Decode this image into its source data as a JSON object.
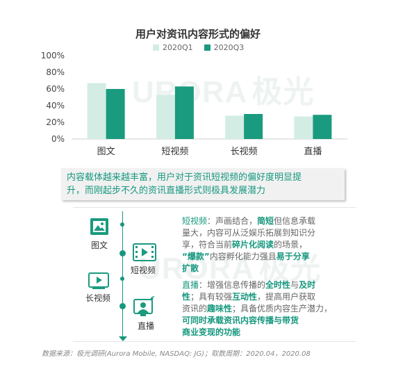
{
  "chart_data": {
    "type": "bar",
    "title": "用户对资讯内容形式的偏好",
    "categories": [
      "图文",
      "短视频",
      "长视频",
      "直播"
    ],
    "series": [
      {
        "name": "2020Q1",
        "values": [
          67,
          53,
          28,
          27
        ]
      },
      {
        "name": "2020Q3",
        "values": [
          60,
          63,
          30,
          29
        ]
      }
    ],
    "ylim": [
      0,
      100
    ],
    "yticks": [
      "0%",
      "20%",
      "40%",
      "60%",
      "80%",
      "100%"
    ],
    "grid": false,
    "legend_position": "top",
    "colors": {
      "2020Q1": "#d3ede4",
      "2020Q3": "#1a9a7e"
    }
  },
  "watermark": {
    "text": "URORA",
    "brand": "极光"
  },
  "summary": {
    "line1": "内容载体越来越丰富，用户对于资讯短视频的偏好度明显提",
    "line2": "升，而刚起步不久的资讯直播形式则极具发展潜力"
  },
  "icons": [
    {
      "name": "image-icon",
      "label": "图文"
    },
    {
      "name": "video-film-icon",
      "label": "短视频"
    },
    {
      "name": "play-icon",
      "label": "长视频"
    },
    {
      "name": "live-person-icon",
      "label": "直播"
    }
  ],
  "short_video": {
    "l1": [
      "短视频",
      "：声画结合，",
      "简短",
      "但信息承载"
    ],
    "l2": [
      "量大，内容可从泛娱乐拓展到知识分"
    ],
    "l3": [
      "享，符合当前",
      "碎片化阅读",
      "的场景，"
    ],
    "l4": [
      "“爆款”",
      "内容孵化能力强且",
      "易于分享"
    ],
    "l5": [
      "扩散"
    ]
  },
  "live": {
    "l1": [
      "直播",
      "：增强信息传播的",
      "全时性",
      "与",
      "及时"
    ],
    "l2": [
      "性",
      "；具有较强",
      "互动性",
      "，提高用户获取"
    ],
    "l3": [
      "资讯的",
      "趣味性",
      "；具备优质内容生产潜力，"
    ],
    "l4": [
      "可同时承载资讯内容传播与带货"
    ],
    "l5": [
      "商业变现的功能"
    ]
  },
  "source": "数据来源：极光调研(Aurora Mobile, NASDAQ: JG)；取数周期：2020.04，2020.08"
}
